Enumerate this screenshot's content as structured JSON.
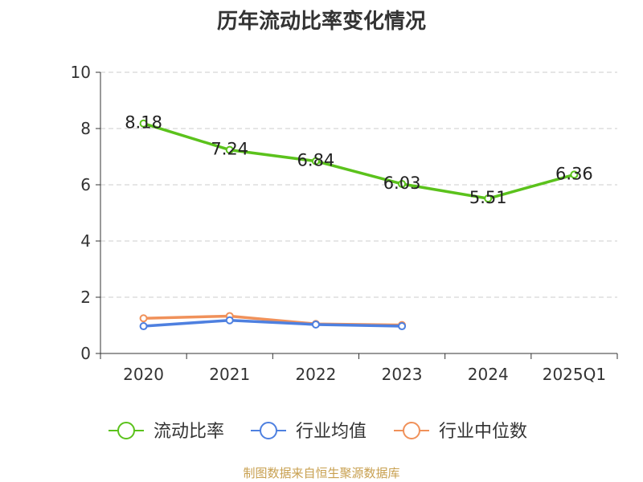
{
  "source_note": "制图数据来自恒生聚源数据库",
  "chart_data": {
    "type": "line",
    "title": "历年流动比率变化情况",
    "xlabel": "",
    "ylabel": "",
    "categories": [
      "2020",
      "2021",
      "2022",
      "2023",
      "2024",
      "2025Q1"
    ],
    "ylim": [
      0,
      10
    ],
    "yticks": [
      0,
      2,
      4,
      6,
      8,
      10
    ],
    "grid": true,
    "legend_position": "bottom",
    "series": [
      {
        "name": "流动比率",
        "color": "#5bc21c",
        "values": [
          8.18,
          7.24,
          6.84,
          6.03,
          5.51,
          6.36
        ],
        "data_labels": [
          "8.18",
          "7.24",
          "6.84",
          "6.03",
          "5.51",
          "6.36"
        ],
        "show_labels": true
      },
      {
        "name": "行业均值",
        "color": "#4e80e0",
        "values": [
          0.97,
          1.18,
          1.03,
          0.97,
          null,
          null
        ],
        "show_labels": false
      },
      {
        "name": "行业中位数",
        "color": "#f0915a",
        "values": [
          1.25,
          1.33,
          1.05,
          1.01,
          null,
          null
        ],
        "show_labels": false
      }
    ]
  }
}
